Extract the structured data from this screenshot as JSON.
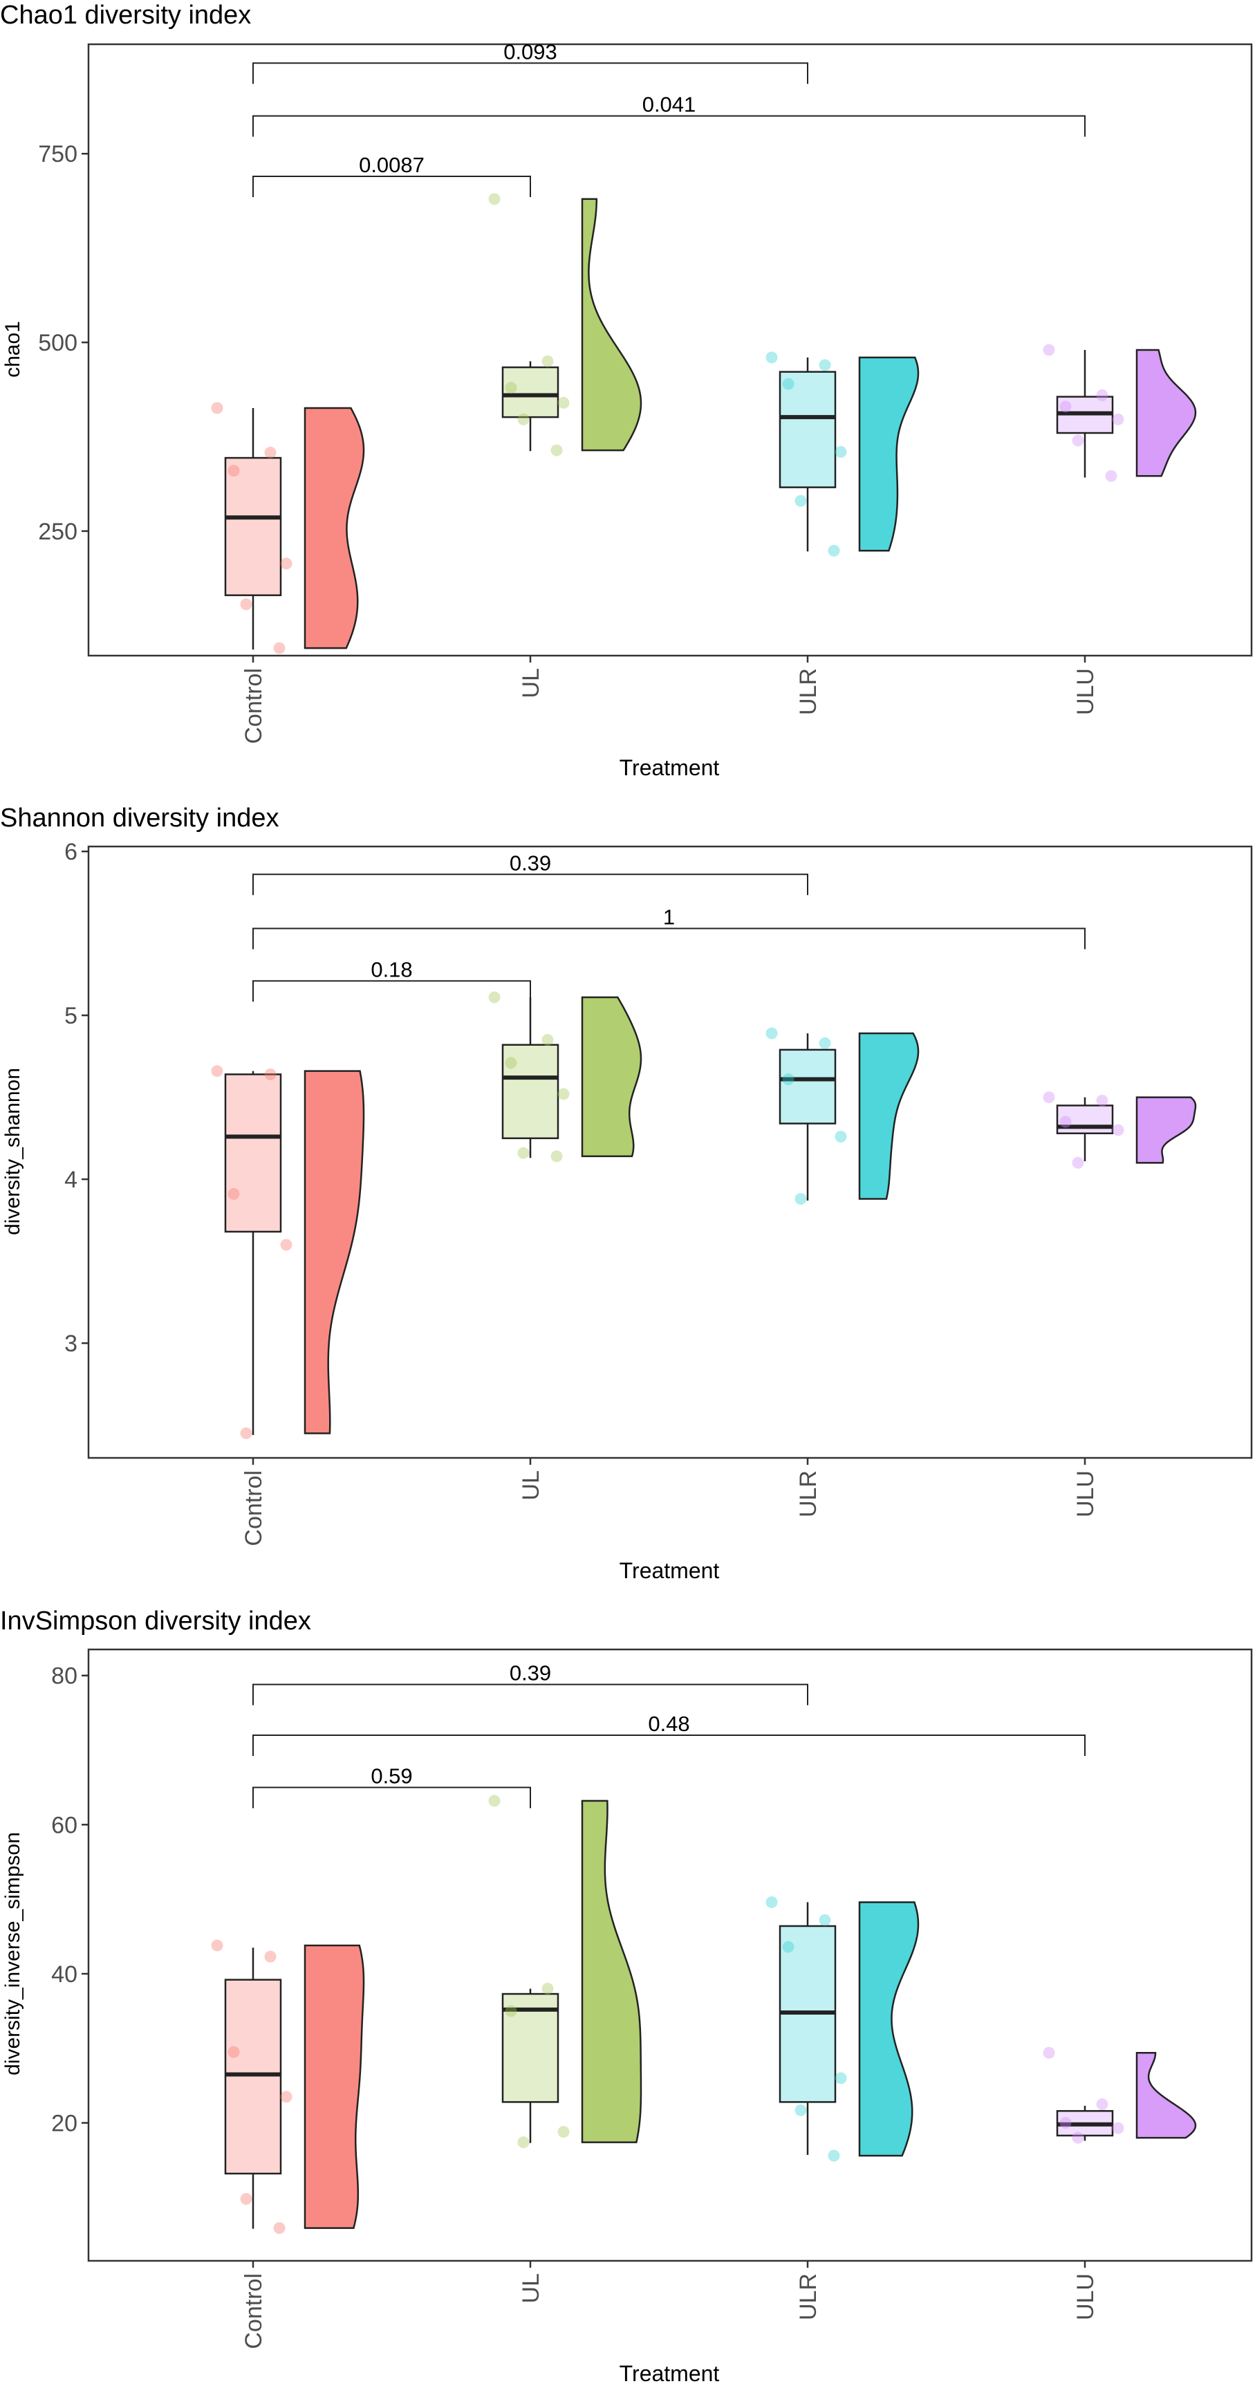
{
  "palette": {
    "Control": "#F8766D",
    "UL": "#A3C657",
    "ULR": "#2FCFD3",
    "ULU": "#D08CF7"
  },
  "groups": [
    "Control",
    "UL",
    "ULR",
    "ULU"
  ],
  "chart_data": [
    {
      "type": "box-violin",
      "title": "Chao1 diversity index",
      "xlabel": "Treatment",
      "ylabel": "chao1",
      "categories": [
        "Control",
        "UL",
        "ULR",
        "ULU"
      ],
      "ylim": [
        85,
        895
      ],
      "yticks": [
        250,
        500,
        750
      ],
      "grid": false,
      "boxes": [
        {
          "group": "Control",
          "min": 93,
          "q1": 165,
          "median": 268,
          "q3": 347,
          "max": 413
        },
        {
          "group": "UL",
          "min": 356,
          "q1": 401,
          "median": 430,
          "q3": 467,
          "max": 475
        },
        {
          "group": "ULR",
          "min": 223,
          "q1": 308,
          "median": 401,
          "q3": 461,
          "max": 480
        },
        {
          "group": "ULU",
          "min": 321,
          "q1": 380,
          "median": 406,
          "q3": 428,
          "max": 490
        }
      ],
      "points": [
        {
          "group": "Control",
          "values": [
            413,
            354,
            330,
            207,
            153,
            95
          ]
        },
        {
          "group": "UL",
          "values": [
            690,
            475,
            440,
            420,
            398,
            357
          ]
        },
        {
          "group": "ULR",
          "values": [
            480,
            470,
            445,
            355,
            290,
            224
          ]
        },
        {
          "group": "ULU",
          "values": [
            490,
            430,
            415,
            398,
            370,
            323
          ]
        }
      ],
      "comparisons": [
        {
          "from": "Control",
          "to": "ULR",
          "label": "0.093",
          "y": 870
        },
        {
          "from": "Control",
          "to": "ULU",
          "label": "0.041",
          "y": 800
        },
        {
          "from": "Control",
          "to": "UL",
          "label": "0.0087",
          "y": 720
        }
      ]
    },
    {
      "type": "box-violin",
      "title": "Shannon diversity index",
      "xlabel": "Treatment",
      "ylabel": "diversity_shannon",
      "categories": [
        "Control",
        "UL",
        "ULR",
        "ULU"
      ],
      "ylim": [
        2.3,
        6.03
      ],
      "yticks": [
        3,
        4,
        5,
        6
      ],
      "grid": false,
      "boxes": [
        {
          "group": "Control",
          "min": 2.44,
          "q1": 3.68,
          "median": 4.26,
          "q3": 4.64,
          "max": 4.66
        },
        {
          "group": "UL",
          "min": 4.13,
          "q1": 4.25,
          "median": 4.62,
          "q3": 4.82,
          "max": 5.11
        },
        {
          "group": "ULR",
          "min": 3.87,
          "q1": 4.34,
          "median": 4.61,
          "q3": 4.79,
          "max": 4.89
        },
        {
          "group": "ULU",
          "min": 4.11,
          "q1": 4.28,
          "median": 4.32,
          "q3": 4.45,
          "max": 4.5
        }
      ],
      "points": [
        {
          "group": "Control",
          "values": [
            4.66,
            4.64,
            3.91,
            3.6,
            2.45
          ]
        },
        {
          "group": "UL",
          "values": [
            5.11,
            4.85,
            4.71,
            4.52,
            4.16,
            4.14
          ]
        },
        {
          "group": "ULR",
          "values": [
            4.89,
            4.83,
            4.61,
            4.26,
            3.88
          ]
        },
        {
          "group": "ULU",
          "values": [
            4.5,
            4.48,
            4.35,
            4.3,
            4.1
          ]
        }
      ],
      "comparisons": [
        {
          "from": "Control",
          "to": "ULR",
          "label": "0.39",
          "y": 5.86
        },
        {
          "from": "Control",
          "to": "ULU",
          "label": "1",
          "y": 5.53
        },
        {
          "from": "Control",
          "to": "UL",
          "label": "0.18",
          "y": 5.21
        }
      ]
    },
    {
      "type": "box-violin",
      "title": "InvSimpson diversity index",
      "xlabel": "Treatment",
      "ylabel": "diversity_inverse_simpson",
      "categories": [
        "Control",
        "UL",
        "ULR",
        "ULU"
      ],
      "ylim": [
        1.5,
        83.5
      ],
      "yticks": [
        20,
        40,
        60,
        80
      ],
      "grid": false,
      "boxes": [
        {
          "group": "Control",
          "min": 5.8,
          "q1": 13.2,
          "median": 26.5,
          "q3": 39.2,
          "max": 43.5
        },
        {
          "group": "UL",
          "min": 17.3,
          "q1": 22.8,
          "median": 35.2,
          "q3": 37.3,
          "max": 38.0
        },
        {
          "group": "ULR",
          "min": 15.7,
          "q1": 22.8,
          "median": 34.8,
          "q3": 46.4,
          "max": 49.6
        },
        {
          "group": "ULU",
          "min": 17.6,
          "q1": 18.3,
          "median": 19.8,
          "q3": 21.6,
          "max": 22.3
        }
      ],
      "points": [
        {
          "group": "Control",
          "values": [
            43.8,
            42.3,
            29.5,
            23.5,
            9.8,
            5.9
          ]
        },
        {
          "group": "UL",
          "values": [
            63.2,
            38.0,
            35.0,
            18.8,
            17.4
          ]
        },
        {
          "group": "ULR",
          "values": [
            49.6,
            47.2,
            43.6,
            26.0,
            21.7,
            15.6
          ]
        },
        {
          "group": "ULU",
          "values": [
            29.4,
            22.5,
            20.0,
            19.3,
            18.0
          ]
        }
      ],
      "comparisons": [
        {
          "from": "Control",
          "to": "ULR",
          "label": "0.39",
          "y": 78.8
        },
        {
          "from": "Control",
          "to": "ULU",
          "label": "0.48",
          "y": 72.0
        },
        {
          "from": "Control",
          "to": "UL",
          "label": "0.59",
          "y": 65.0
        }
      ]
    }
  ]
}
